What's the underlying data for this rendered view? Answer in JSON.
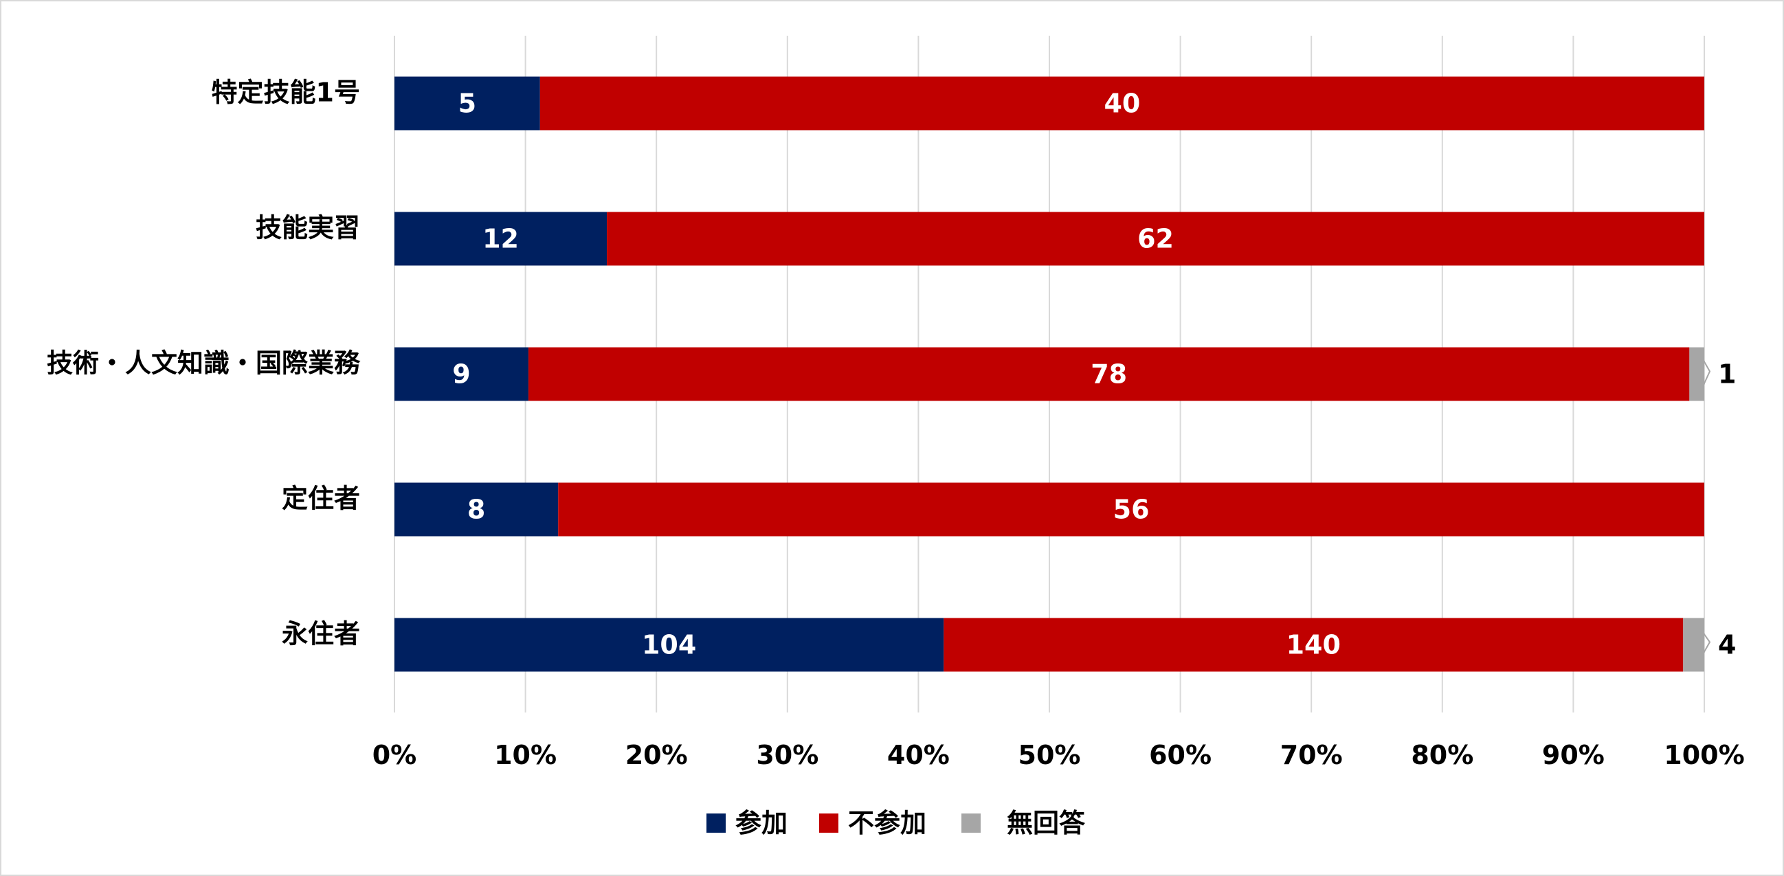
{
  "chart_data": {
    "type": "bar",
    "orientation": "horizontal",
    "stacked": "percent",
    "title": "",
    "xlabel": "",
    "ylabel": "",
    "categories": [
      "特定技能1号",
      "技能実習",
      "技術・人文知識・国際業務",
      "定住者",
      "永住者"
    ],
    "series": [
      {
        "name": "参加",
        "color": "#002060",
        "values": [
          5,
          12,
          9,
          8,
          104
        ],
        "labels": [
          "5",
          "12",
          "9",
          "8",
          "104"
        ]
      },
      {
        "name": "不参加",
        "color": "#C00000",
        "values": [
          40,
          62,
          78,
          56,
          140
        ],
        "labels": [
          "40",
          "62",
          "78",
          "56",
          "140"
        ]
      },
      {
        "name": "無回答",
        "color": "#A6A6A6",
        "values": [
          0,
          0,
          1,
          0,
          4
        ],
        "labels": [
          "",
          "",
          "1",
          "",
          "4"
        ]
      }
    ],
    "xlim": [
      0,
      100
    ],
    "x_ticks": [
      "0%",
      "10%",
      "20%",
      "30%",
      "40%",
      "50%",
      "60%",
      "70%",
      "80%",
      "90%",
      "100%"
    ],
    "grid": "vertical",
    "legend_position": "bottom"
  }
}
